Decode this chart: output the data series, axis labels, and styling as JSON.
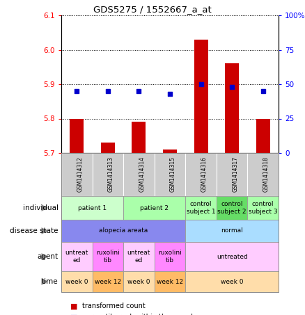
{
  "title": "GDS5275 / 1552667_a_at",
  "samples": [
    "GSM1414312",
    "GSM1414313",
    "GSM1414314",
    "GSM1414315",
    "GSM1414316",
    "GSM1414317",
    "GSM1414318"
  ],
  "transformed_count": [
    5.8,
    5.73,
    5.79,
    5.71,
    6.03,
    5.96,
    5.8
  ],
  "percentile_rank": [
    45,
    45,
    45,
    43,
    50,
    48,
    45
  ],
  "ylim_left": [
    5.7,
    6.1
  ],
  "ylim_right": [
    0,
    100
  ],
  "yticks_left": [
    5.7,
    5.8,
    5.9,
    6.0,
    6.1
  ],
  "yticks_right": [
    0,
    25,
    50,
    75,
    100
  ],
  "ytick_labels_right": [
    "0",
    "25",
    "50",
    "75",
    "100%"
  ],
  "bar_color": "#cc0000",
  "dot_color": "#0000cc",
  "bar_bottom": 5.7,
  "individual_groups": [
    {
      "label": "patient 1",
      "cols": [
        0,
        1
      ],
      "color": "#ccffcc"
    },
    {
      "label": "patient 2",
      "cols": [
        2,
        3
      ],
      "color": "#aaffaa"
    },
    {
      "label": "control\nsubject 1",
      "cols": [
        4
      ],
      "color": "#aaffaa"
    },
    {
      "label": "control\nsubject 2",
      "cols": [
        5
      ],
      "color": "#66dd66"
    },
    {
      "label": "control\nsubject 3",
      "cols": [
        6
      ],
      "color": "#aaffaa"
    }
  ],
  "disease_groups": [
    {
      "label": "alopecia areata",
      "cols": [
        0,
        1,
        2,
        3
      ],
      "color": "#8888ee"
    },
    {
      "label": "normal",
      "cols": [
        4,
        5,
        6
      ],
      "color": "#aaddff"
    }
  ],
  "agent_groups": [
    {
      "label": "untreat\ned",
      "cols": [
        0
      ],
      "color": "#ffccff"
    },
    {
      "label": "ruxolini\ntib",
      "cols": [
        1
      ],
      "color": "#ff88ff"
    },
    {
      "label": "untreat\ned",
      "cols": [
        2
      ],
      "color": "#ffccff"
    },
    {
      "label": "ruxolini\ntib",
      "cols": [
        3
      ],
      "color": "#ff88ff"
    },
    {
      "label": "untreated",
      "cols": [
        4,
        5,
        6
      ],
      "color": "#ffccff"
    }
  ],
  "time_groups": [
    {
      "label": "week 0",
      "cols": [
        0
      ],
      "color": "#ffddaa"
    },
    {
      "label": "week 12",
      "cols": [
        1
      ],
      "color": "#ffbb66"
    },
    {
      "label": "week 0",
      "cols": [
        2
      ],
      "color": "#ffddaa"
    },
    {
      "label": "week 12",
      "cols": [
        3
      ],
      "color": "#ffbb66"
    },
    {
      "label": "week 0",
      "cols": [
        4,
        5,
        6
      ],
      "color": "#ffddaa"
    }
  ],
  "chart_bg": "#ffffff",
  "sample_cell_color": "#cccccc"
}
